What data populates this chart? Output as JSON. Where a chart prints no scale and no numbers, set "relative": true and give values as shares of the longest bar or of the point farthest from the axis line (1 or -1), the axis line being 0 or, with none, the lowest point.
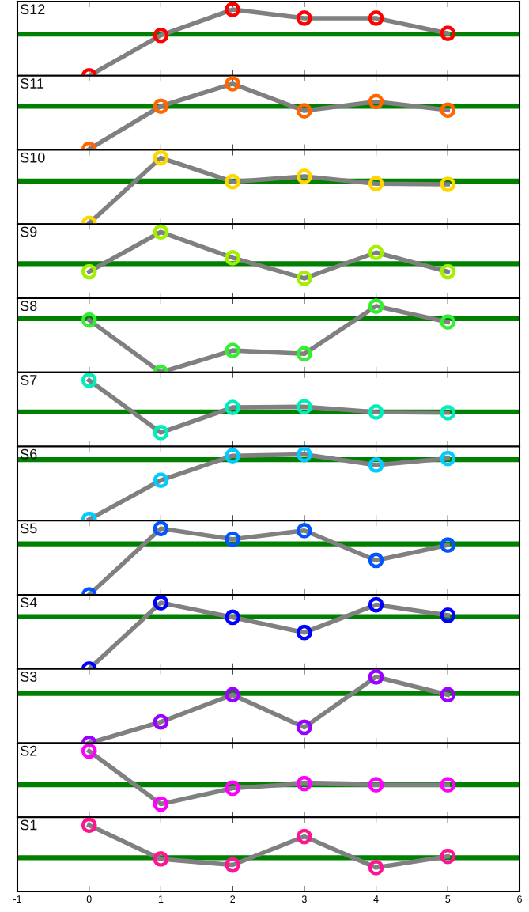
{
  "chart_data": [
    {
      "type": "line",
      "relative": true,
      "xlim": [
        -1,
        6
      ],
      "xticks": [
        -1,
        0,
        1,
        2,
        3,
        4,
        5,
        6
      ],
      "tick_labels": false,
      "marker": "circle",
      "line_style": "solid",
      "x": [
        0,
        1,
        2,
        3,
        4,
        5
      ],
      "series": [
        {
          "name": "S12",
          "color": "#ff0000",
          "values": [
            0,
            0.61,
            1,
            0.87,
            0.87,
            0.64
          ]
        }
      ],
      "ref_lines": [
        {
          "axis": "y",
          "value": 0.63,
          "color": "#008000"
        }
      ]
    },
    {
      "type": "line",
      "relative": true,
      "xlim": [
        -1,
        6
      ],
      "xticks": [
        -1,
        0,
        1,
        2,
        3,
        4,
        5,
        6
      ],
      "tick_labels": false,
      "marker": "circle",
      "line_style": "solid",
      "x": [
        0,
        1,
        2,
        3,
        4,
        5
      ],
      "series": [
        {
          "name": "S11",
          "color": "#ff6600",
          "values": [
            0.01,
            0.66,
            1,
            0.59,
            0.73,
            0.6
          ]
        }
      ],
      "ref_lines": [
        {
          "axis": "y",
          "value": 0.66,
          "color": "#008000"
        }
      ]
    },
    {
      "type": "line",
      "relative": true,
      "xlim": [
        -1,
        6
      ],
      "xticks": [
        -1,
        0,
        1,
        2,
        3,
        4,
        5,
        6
      ],
      "tick_labels": false,
      "marker": "circle",
      "line_style": "solid",
      "x": [
        0,
        1,
        2,
        3,
        4,
        5
      ],
      "series": [
        {
          "name": "S10",
          "color": "#ffd700",
          "values": [
            0.01,
            1,
            0.64,
            0.72,
            0.61,
            0.6
          ]
        }
      ],
      "ref_lines": [
        {
          "axis": "y",
          "value": 0.65,
          "color": "#008000"
        }
      ]
    },
    {
      "type": "line",
      "relative": true,
      "xlim": [
        -1,
        6
      ],
      "xticks": [
        -1,
        0,
        1,
        2,
        3,
        4,
        5,
        6
      ],
      "tick_labels": false,
      "marker": "circle",
      "line_style": "solid",
      "x": [
        0,
        1,
        2,
        3,
        4,
        5
      ],
      "series": [
        {
          "name": "S9",
          "color": "#a0f000",
          "values": [
            0.4,
            1,
            0.61,
            0.3,
            0.69,
            0.4
          ]
        }
      ],
      "ref_lines": [
        {
          "axis": "y",
          "value": 0.52,
          "color": "#008000"
        }
      ]
    },
    {
      "type": "line",
      "relative": true,
      "xlim": [
        -1,
        6
      ],
      "xticks": [
        -1,
        0,
        1,
        2,
        3,
        4,
        5,
        6
      ],
      "tick_labels": false,
      "marker": "circle",
      "line_style": "solid",
      "x": [
        0,
        1,
        2,
        3,
        4,
        5
      ],
      "series": [
        {
          "name": "S8",
          "color": "#33ee33",
          "values": [
            0.79,
            0,
            0.33,
            0.28,
            1,
            0.76
          ]
        }
      ],
      "ref_lines": [
        {
          "axis": "y",
          "value": 0.81,
          "color": "#008000"
        }
      ]
    },
    {
      "type": "line",
      "relative": true,
      "xlim": [
        -1,
        6
      ],
      "xticks": [
        -1,
        0,
        1,
        2,
        3,
        4,
        5,
        6
      ],
      "tick_labels": false,
      "marker": "circle",
      "line_style": "solid",
      "x": [
        0,
        1,
        2,
        3,
        4,
        5
      ],
      "series": [
        {
          "name": "S7",
          "color": "#00eebb",
          "values": [
            1,
            0.21,
            0.59,
            0.6,
            0.52,
            0.51
          ]
        }
      ],
      "ref_lines": [
        {
          "axis": "y",
          "value": 0.52,
          "color": "#008000"
        }
      ]
    },
    {
      "type": "line",
      "relative": true,
      "xlim": [
        -1,
        6
      ],
      "xticks": [
        -1,
        0,
        1,
        2,
        3,
        4,
        5,
        6
      ],
      "tick_labels": false,
      "marker": "circle",
      "line_style": "solid",
      "x": [
        0,
        1,
        2,
        3,
        4,
        5
      ],
      "series": [
        {
          "name": "S6",
          "color": "#00ccff",
          "values": [
            0.02,
            0.61,
            0.98,
            1,
            0.84,
            0.94
          ]
        }
      ],
      "ref_lines": [
        {
          "axis": "y",
          "value": 0.92,
          "color": "#008000"
        }
      ]
    },
    {
      "type": "line",
      "relative": true,
      "xlim": [
        -1,
        6
      ],
      "xticks": [
        -1,
        0,
        1,
        2,
        3,
        4,
        5,
        6
      ],
      "tick_labels": false,
      "marker": "circle",
      "line_style": "solid",
      "x": [
        0,
        1,
        2,
        3,
        4,
        5
      ],
      "series": [
        {
          "name": "S5",
          "color": "#0055ff",
          "values": [
            0,
            1,
            0.84,
            0.97,
            0.52,
            0.75
          ]
        }
      ],
      "ref_lines": [
        {
          "axis": "y",
          "value": 0.77,
          "color": "#008000"
        }
      ]
    },
    {
      "type": "line",
      "relative": true,
      "xlim": [
        -1,
        6
      ],
      "xticks": [
        -1,
        0,
        1,
        2,
        3,
        4,
        5,
        6
      ],
      "tick_labels": false,
      "marker": "circle",
      "line_style": "solid",
      "x": [
        0,
        1,
        2,
        3,
        4,
        5
      ],
      "series": [
        {
          "name": "S4",
          "color": "#0000ff",
          "values": [
            0,
            1,
            0.78,
            0.55,
            0.97,
            0.81
          ]
        }
      ],
      "ref_lines": [
        {
          "axis": "y",
          "value": 0.79,
          "color": "#008000"
        }
      ]
    },
    {
      "type": "line",
      "relative": true,
      "xlim": [
        -1,
        6
      ],
      "xticks": [
        -1,
        0,
        1,
        2,
        3,
        4,
        5,
        6
      ],
      "tick_labels": false,
      "marker": "circle",
      "line_style": "solid",
      "x": [
        0,
        1,
        2,
        3,
        4,
        5
      ],
      "series": [
        {
          "name": "S3",
          "color": "#9900ff",
          "values": [
            0,
            0.32,
            0.73,
            0.24,
            1,
            0.73
          ]
        }
      ],
      "ref_lines": [
        {
          "axis": "y",
          "value": 0.75,
          "color": "#008000"
        }
      ]
    },
    {
      "type": "line",
      "relative": true,
      "xlim": [
        -1,
        6
      ],
      "xticks": [
        -1,
        0,
        1,
        2,
        3,
        4,
        5,
        6
      ],
      "tick_labels": false,
      "marker": "circle",
      "line_style": "solid",
      "x": [
        0,
        1,
        2,
        3,
        4,
        5
      ],
      "series": [
        {
          "name": "S2",
          "color": "#ff00ff",
          "values": [
            1,
            0.2,
            0.44,
            0.51,
            0.49,
            0.49
          ]
        }
      ],
      "ref_lines": [
        {
          "axis": "y",
          "value": 0.49,
          "color": "#008000"
        }
      ]
    },
    {
      "type": "line",
      "relative": true,
      "xlim": [
        -1,
        6
      ],
      "xticks": [
        -1,
        0,
        1,
        2,
        3,
        4,
        5,
        6
      ],
      "tick_labels": "x",
      "marker": "circle",
      "line_style": "solid",
      "x": [
        0,
        1,
        2,
        3,
        4,
        5
      ],
      "series": [
        {
          "name": "S1",
          "color": "#ff1493",
          "values": [
            1,
            0.49,
            0.4,
            0.83,
            0.36,
            0.53
          ]
        }
      ],
      "ref_lines": [
        {
          "axis": "y",
          "value": 0.51,
          "color": "#008000"
        }
      ]
    }
  ]
}
